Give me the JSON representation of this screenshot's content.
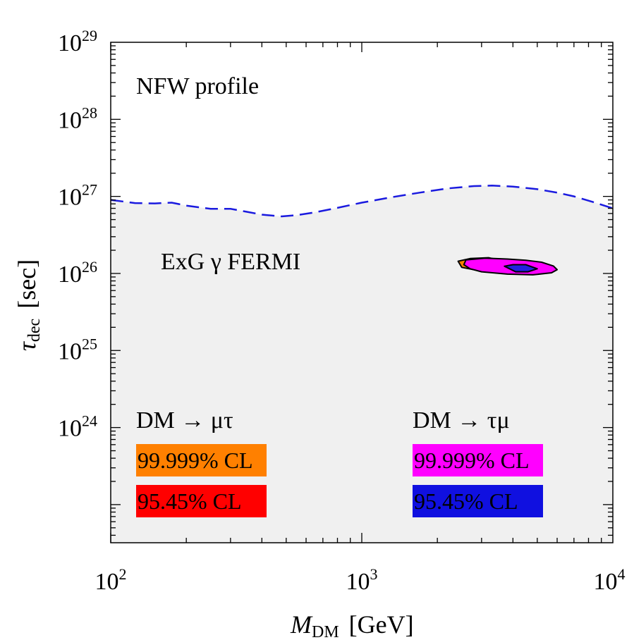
{
  "chart_data": {
    "type": "contour",
    "title": "",
    "xlabel": {
      "symbol": "M",
      "subscript": "DM",
      "unit": "[GeV]"
    },
    "ylabel": {
      "symbol": "τ",
      "subscript": "dec",
      "unit": "[sec]"
    },
    "xscale": "log",
    "yscale": "log",
    "xlim": [
      100,
      10000
    ],
    "ylim": [
      3.2e+22,
      1e+29
    ],
    "x_ticks": [
      {
        "value": 100,
        "base": "10",
        "exp": "2"
      },
      {
        "value": 1000,
        "base": "10",
        "exp": "3"
      },
      {
        "value": 10000,
        "base": "10",
        "exp": "4"
      }
    ],
    "y_ticks": [
      {
        "value": 1e+24,
        "base": "10",
        "exp": "24"
      },
      {
        "value": 1e+25,
        "base": "10",
        "exp": "25"
      },
      {
        "value": 1e+26,
        "base": "10",
        "exp": "26"
      },
      {
        "value": 1e+27,
        "base": "10",
        "exp": "27"
      },
      {
        "value": 1e+28,
        "base": "10",
        "exp": "28"
      },
      {
        "value": 1e+29,
        "base": "10",
        "exp": "29"
      }
    ],
    "annotations": {
      "profile": "NFW profile",
      "constraint": "ExG γ FERMI"
    },
    "exclusion_curve": {
      "name": "ExG γ FERMI",
      "style": "dashed",
      "color": "#1a1adf",
      "fill_below": "#f0f0f0",
      "points": [
        [
          100,
          9e+26
        ],
        [
          125,
          8.2e+26
        ],
        [
          150,
          8.1e+26
        ],
        [
          175,
          8.3e+26
        ],
        [
          200,
          7.6e+26
        ],
        [
          250,
          6.9e+26
        ],
        [
          300,
          6.9e+26
        ],
        [
          350,
          6.3e+26
        ],
        [
          400,
          5.8e+26
        ],
        [
          480,
          5.5e+26
        ],
        [
          550,
          5.7e+26
        ],
        [
          650,
          6.2e+26
        ],
        [
          800,
          7.1e+26
        ],
        [
          1000,
          8.3e+26
        ],
        [
          1300,
          9.7e+26
        ],
        [
          1700,
          1.12e+27
        ],
        [
          2200,
          1.27e+27
        ],
        [
          2800,
          1.36e+27
        ],
        [
          3300,
          1.38e+27
        ],
        [
          4000,
          1.34e+27
        ],
        [
          5000,
          1.24e+27
        ],
        [
          6000,
          1.12e+27
        ],
        [
          7000,
          1e+27
        ],
        [
          8500,
          8.3e+26
        ],
        [
          10000,
          7e+26
        ]
      ]
    },
    "regions": [
      {
        "name": "DM → μτ 99.999% CL",
        "color": "#ff8000",
        "points": [
          [
            2420,
            1.44e+26
          ],
          [
            2700,
            1.56e+26
          ],
          [
            3200,
            1.6e+26
          ],
          [
            3500,
            1.5e+26
          ],
          [
            3300,
            1.2e+26
          ],
          [
            2800,
            1.12e+26
          ],
          [
            2500,
            1.2e+26
          ]
        ]
      },
      {
        "name": "DM → τμ 99.999% CL",
        "color": "#ff00ff",
        "points": [
          [
            2600,
            1.5e+26
          ],
          [
            3100,
            1.58e+26
          ],
          [
            3800,
            1.54e+26
          ],
          [
            4500,
            1.48e+26
          ],
          [
            5200,
            1.4e+26
          ],
          [
            5800,
            1.25e+26
          ],
          [
            6000,
            1.12e+26
          ],
          [
            5700,
            1.02e+26
          ],
          [
            4800,
            9.6e+25
          ],
          [
            3800,
            9.8e+25
          ],
          [
            3000,
            1.05e+26
          ],
          [
            2700,
            1.15e+26
          ],
          [
            2550,
            1.3e+26
          ]
        ]
      },
      {
        "name": "DM → τμ 95.45% CL",
        "color": "#2020e0",
        "points": [
          [
            3700,
            1.24e+26
          ],
          [
            4000,
            1.3e+26
          ],
          [
            4500,
            1.3e+26
          ],
          [
            5000,
            1.15e+26
          ],
          [
            4600,
            1.05e+26
          ],
          [
            4100,
            1.05e+26
          ]
        ]
      }
    ],
    "legend": {
      "left_title": "DM → μτ",
      "right_title": "DM → τμ",
      "entries": [
        {
          "id": "mutau-99",
          "label": "99.999% CL",
          "color": "#ff8000",
          "column": "left",
          "row": 0
        },
        {
          "id": "mutau-95",
          "label": "95.45% CL",
          "color": "#ff0000",
          "column": "left",
          "row": 1
        },
        {
          "id": "taumu-99",
          "label": "99.999% CL",
          "color": "#ff00ff",
          "column": "right",
          "row": 0
        },
        {
          "id": "taumu-95",
          "label": "95.45% CL",
          "color": "#1010e0",
          "column": "right",
          "row": 1
        }
      ]
    }
  }
}
